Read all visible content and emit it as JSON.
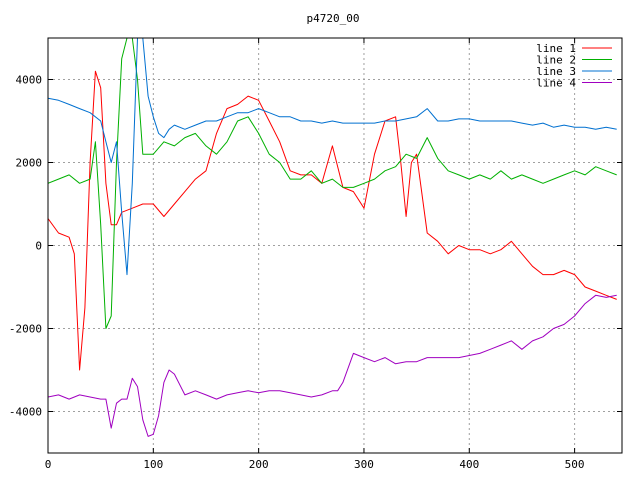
{
  "chart_data": {
    "type": "line",
    "title": "p4720_00",
    "xlabel": "",
    "ylabel": "",
    "xlim": [
      0,
      545
    ],
    "ylim": [
      -5000,
      5000
    ],
    "x_ticks": [
      0,
      100,
      200,
      300,
      400,
      500
    ],
    "y_ticks": [
      -4000,
      -2000,
      0,
      2000,
      4000
    ],
    "grid": true,
    "legend_position": "top-right",
    "series": [
      {
        "name": "line 1",
        "color": "#ff0000",
        "x": [
          0,
          10,
          20,
          25,
          30,
          35,
          40,
          45,
          50,
          55,
          60,
          65,
          70,
          80,
          90,
          100,
          110,
          120,
          130,
          140,
          150,
          160,
          170,
          180,
          190,
          200,
          210,
          220,
          230,
          240,
          250,
          260,
          270,
          280,
          290,
          300,
          310,
          320,
          330,
          335,
          340,
          345,
          350,
          360,
          370,
          380,
          390,
          400,
          410,
          420,
          430,
          440,
          450,
          460,
          470,
          480,
          490,
          500,
          510,
          520,
          530,
          540
        ],
        "y": [
          650,
          300,
          200,
          -200,
          -3000,
          -1500,
          2000,
          4200,
          3800,
          1500,
          500,
          500,
          800,
          900,
          1000,
          1000,
          700,
          1000,
          1300,
          1600,
          1800,
          2700,
          3300,
          3400,
          3600,
          3500,
          3000,
          2500,
          1800,
          1700,
          1700,
          1500,
          2400,
          1400,
          1300,
          900,
          2200,
          3000,
          3100,
          2000,
          700,
          2000,
          2200,
          300,
          100,
          -200,
          0,
          -100,
          -100,
          -200,
          -100,
          100,
          -200,
          -500,
          -700,
          -700,
          -600,
          -700,
          -1000,
          -1100,
          -1200,
          -1300
        ]
      },
      {
        "name": "line 2",
        "color": "#00b000",
        "x": [
          0,
          10,
          20,
          30,
          40,
          45,
          50,
          55,
          60,
          65,
          70,
          75,
          80,
          85,
          90,
          100,
          110,
          120,
          130,
          140,
          150,
          160,
          170,
          180,
          190,
          200,
          210,
          220,
          230,
          240,
          250,
          260,
          270,
          280,
          290,
          300,
          310,
          320,
          330,
          340,
          350,
          360,
          370,
          380,
          390,
          400,
          410,
          420,
          430,
          440,
          450,
          460,
          470,
          480,
          490,
          500,
          510,
          520,
          530,
          540
        ],
        "y": [
          1500,
          1600,
          1700,
          1500,
          1600,
          2500,
          500,
          -2000,
          -1700,
          2000,
          4500,
          5000,
          5000,
          4000,
          2200,
          2200,
          2500,
          2400,
          2600,
          2700,
          2400,
          2200,
          2500,
          3000,
          3100,
          2700,
          2200,
          2000,
          1600,
          1600,
          1800,
          1500,
          1600,
          1400,
          1400,
          1500,
          1600,
          1800,
          1900,
          2200,
          2100,
          2600,
          2100,
          1800,
          1700,
          1600,
          1700,
          1600,
          1800,
          1600,
          1700,
          1600,
          1500,
          1600,
          1700,
          1800,
          1700,
          1900,
          1800,
          1700
        ]
      },
      {
        "name": "line 3",
        "color": "#0070d0",
        "x": [
          0,
          10,
          20,
          30,
          40,
          50,
          55,
          60,
          65,
          70,
          75,
          80,
          85,
          90,
          95,
          100,
          105,
          110,
          115,
          120,
          130,
          140,
          150,
          160,
          170,
          180,
          190,
          200,
          210,
          220,
          230,
          240,
          250,
          260,
          270,
          280,
          290,
          300,
          310,
          320,
          330,
          340,
          350,
          360,
          370,
          380,
          390,
          400,
          410,
          420,
          430,
          440,
          450,
          460,
          470,
          480,
          490,
          500,
          510,
          520,
          530,
          540
        ],
        "y": [
          3550,
          3500,
          3400,
          3300,
          3200,
          3000,
          2500,
          2000,
          2500,
          800,
          -700,
          1500,
          5000,
          5000,
          3600,
          3100,
          2700,
          2600,
          2800,
          2900,
          2800,
          2900,
          3000,
          3000,
          3100,
          3200,
          3200,
          3300,
          3200,
          3100,
          3100,
          3000,
          3000,
          2950,
          3000,
          2950,
          2950,
          2950,
          2950,
          3000,
          3000,
          3050,
          3100,
          3300,
          3000,
          3000,
          3050,
          3050,
          3000,
          3000,
          3000,
          3000,
          2950,
          2900,
          2950,
          2850,
          2900,
          2850,
          2850,
          2800,
          2850,
          2800
        ]
      },
      {
        "name": "line 4",
        "color": "#a000c0",
        "x": [
          0,
          10,
          20,
          30,
          40,
          50,
          55,
          60,
          65,
          70,
          75,
          80,
          85,
          90,
          95,
          100,
          105,
          110,
          115,
          120,
          130,
          140,
          150,
          160,
          170,
          180,
          190,
          200,
          210,
          220,
          230,
          240,
          250,
          260,
          270,
          275,
          280,
          290,
          300,
          310,
          320,
          330,
          340,
          350,
          360,
          370,
          380,
          390,
          400,
          410,
          420,
          430,
          440,
          450,
          460,
          470,
          480,
          490,
          500,
          510,
          520,
          530,
          540
        ],
        "y": [
          -3650,
          -3600,
          -3700,
          -3600,
          -3650,
          -3700,
          -3700,
          -4400,
          -3800,
          -3700,
          -3700,
          -3200,
          -3400,
          -4200,
          -4600,
          -4550,
          -4100,
          -3300,
          -3000,
          -3100,
          -3600,
          -3500,
          -3600,
          -3700,
          -3600,
          -3550,
          -3500,
          -3550,
          -3500,
          -3500,
          -3550,
          -3600,
          -3650,
          -3600,
          -3500,
          -3500,
          -3300,
          -2600,
          -2700,
          -2800,
          -2700,
          -2850,
          -2800,
          -2800,
          -2700,
          -2700,
          -2700,
          -2700,
          -2650,
          -2600,
          -2500,
          -2400,
          -2300,
          -2500,
          -2300,
          -2200,
          -2000,
          -1900,
          -1700,
          -1400,
          -1200,
          -1250,
          -1200
        ]
      }
    ]
  }
}
